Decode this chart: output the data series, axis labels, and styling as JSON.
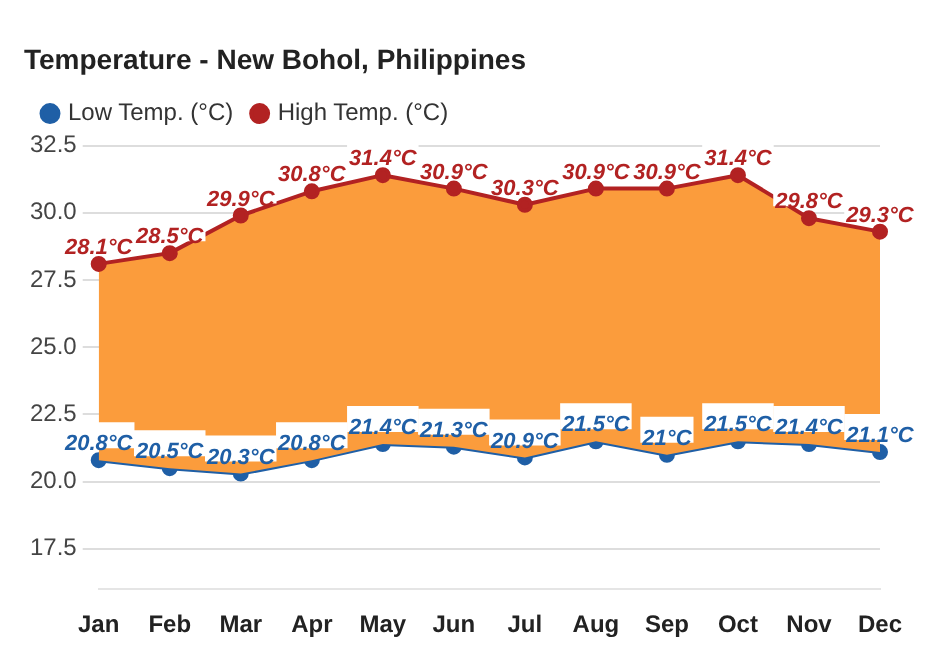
{
  "chart_data": {
    "type": "line",
    "title": "Temperature - New Bohol, Philippines",
    "categories": [
      "Jan",
      "Feb",
      "Mar",
      "Apr",
      "May",
      "Jun",
      "Jul",
      "Aug",
      "Sep",
      "Oct",
      "Nov",
      "Dec"
    ],
    "series": [
      {
        "name": "Low Temp. (°C)",
        "type": "line",
        "color": "#1f5fa6",
        "values": [
          20.8,
          20.5,
          20.3,
          20.8,
          21.4,
          21.3,
          20.9,
          21.5,
          21,
          21.5,
          21.4,
          21.1
        ],
        "value_labels": [
          "20.8°C",
          "20.5°C",
          "20.3°C",
          "20.8°C",
          "21.4°C",
          "21.3°C",
          "20.9°C",
          "21.5°C",
          "21°C",
          "21.5°C",
          "21.4°C",
          "21.1°C"
        ]
      },
      {
        "name": "High Temp. (°C)",
        "type": "area",
        "color": "#b22222",
        "values": [
          28.1,
          28.5,
          29.9,
          30.8,
          31.4,
          30.9,
          30.3,
          30.9,
          30.9,
          31.4,
          29.8,
          29.3
        ],
        "value_labels": [
          "28.1°C",
          "28.5°C",
          "29.9°C",
          "30.8°C",
          "31.4°C",
          "30.9°C",
          "30.3°C",
          "30.9°C",
          "30.9°C",
          "31.4°C",
          "29.8°C",
          "29.3°C"
        ]
      }
    ],
    "ylim": [
      16,
      32.5
    ],
    "yticks": [
      17.5,
      {
        "value": 20,
        "label": "20.0"
      },
      22.5,
      {
        "value": 25,
        "label": "25.0"
      },
      27.5,
      {
        "value": 30,
        "label": "30.0"
      },
      32.5
    ],
    "grid": "y",
    "legend": "top left",
    "marker": "circle",
    "line_style": "solid"
  }
}
